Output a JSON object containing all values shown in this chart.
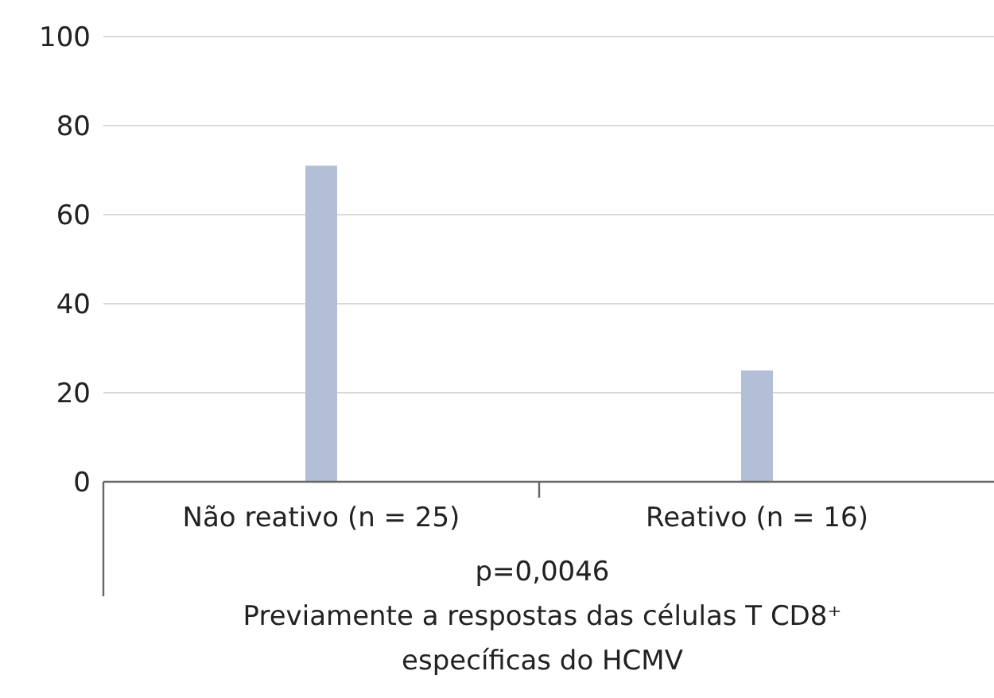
{
  "chart_data": {
    "type": "bar",
    "categories": [
      "Não reativo (n = 25)",
      "Reativo (n = 16)"
    ],
    "values": [
      71,
      25
    ],
    "color": "#b3bfd6",
    "ylim": [
      0,
      100
    ],
    "yticks": [
      0,
      20,
      40,
      60,
      80,
      100
    ],
    "grid": "y",
    "xlabel": "Previamente a respostas das células T CD8⁺ específicas do HCMV",
    "annotations": [
      "p=0,0046"
    ]
  }
}
